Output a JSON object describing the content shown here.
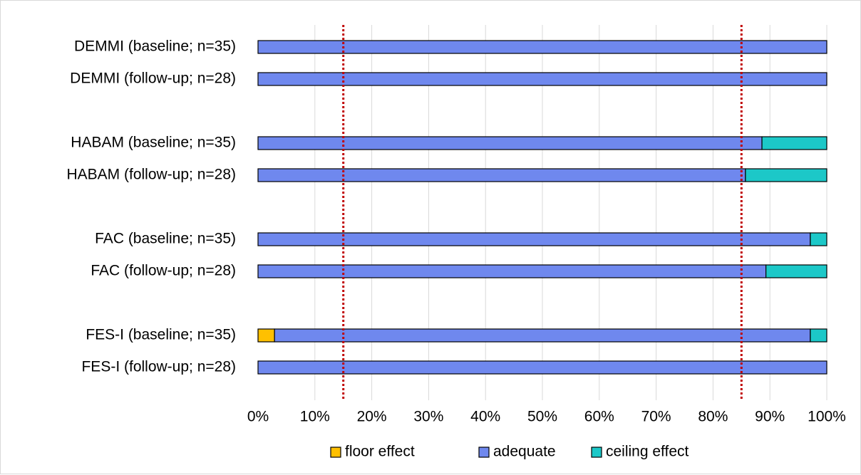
{
  "chart_data": {
    "type": "bar",
    "orientation": "horizontal",
    "stacked": true,
    "percent_stacked": true,
    "title": "",
    "xlabel": "",
    "ylabel": "",
    "xlim": [
      0,
      100
    ],
    "x_ticks": [
      "0%",
      "10%",
      "20%",
      "30%",
      "40%",
      "50%",
      "60%",
      "70%",
      "80%",
      "90%",
      "100%"
    ],
    "grid": true,
    "legend_position": "bottom",
    "categories": [
      "DEMMI (baseline; n=35)",
      "DEMMI (follow-up; n=28)",
      "",
      "HABAM (baseline; n=35)",
      "HABAM (follow-up; n=28)",
      "",
      "FAC (baseline; n=35)",
      "FAC (follow-up; n=28)",
      "",
      "FES-I (baseline; n=35)",
      "FES-I (follow-up; n=28)"
    ],
    "series": [
      {
        "name": "floor effect",
        "color": "#FFC000",
        "values": [
          0,
          0,
          null,
          0,
          0,
          null,
          0,
          0,
          null,
          2.9,
          0
        ]
      },
      {
        "name": "adequate",
        "color": "#6F88EE",
        "values": [
          100,
          100,
          null,
          88.6,
          85.7,
          null,
          97.1,
          89.3,
          null,
          94.2,
          100
        ]
      },
      {
        "name": "ceiling effect",
        "color": "#1CC8C8",
        "values": [
          0,
          0,
          null,
          11.4,
          14.3,
          null,
          2.9,
          10.7,
          null,
          2.9,
          0
        ]
      }
    ],
    "reference_lines": [
      {
        "x": 15,
        "color": "#C00000",
        "style": "dotted"
      },
      {
        "x": 85,
        "color": "#C00000",
        "style": "dotted"
      }
    ]
  }
}
